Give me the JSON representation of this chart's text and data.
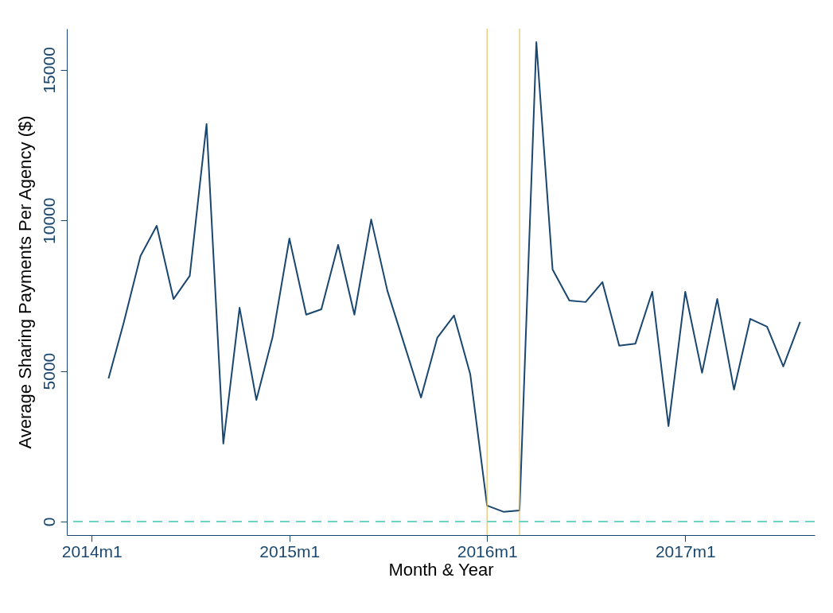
{
  "chart_data": {
    "type": "line",
    "xlabel": "Month & Year",
    "ylabel": "Average Sharing Payments Per Agency ($)",
    "x": [
      "2014-02",
      "2014-03",
      "2014-04",
      "2014-05",
      "2014-06",
      "2014-07",
      "2014-08",
      "2014-09",
      "2014-10",
      "2014-11",
      "2014-12",
      "2015-01",
      "2015-02",
      "2015-03",
      "2015-04",
      "2015-05",
      "2015-06",
      "2015-07",
      "2015-08",
      "2015-09",
      "2015-10",
      "2015-11",
      "2015-12",
      "2016-01",
      "2016-02",
      "2016-03",
      "2016-04",
      "2016-05",
      "2016-06",
      "2016-07",
      "2016-08",
      "2016-09",
      "2016-10",
      "2016-11",
      "2016-12",
      "2017-01",
      "2017-02",
      "2017-03",
      "2017-04",
      "2017-05",
      "2017-06",
      "2017-07",
      "2017-08"
    ],
    "series": [
      {
        "color": "#1a476f",
        "values": [
          4750,
          6600,
          8820,
          9820,
          7390,
          8160,
          13200,
          2590,
          7100,
          4040,
          6130,
          9400,
          6870,
          7050,
          9190,
          6870,
          10030,
          7660,
          5890,
          4120,
          6100,
          6840,
          4890,
          530,
          320,
          370,
          15920,
          8370,
          7340,
          7290,
          7950,
          5840,
          5910,
          7630,
          3170,
          7630,
          4940,
          7390,
          4380,
          6730,
          6470,
          5150,
          6630
        ]
      }
    ],
    "xlim": [
      "2013-11-16",
      "2017-08-28"
    ],
    "xticks": [
      {
        "value": "2014-01",
        "label": "2014m1"
      },
      {
        "value": "2015-01",
        "label": "2015m1"
      },
      {
        "value": "2016-01",
        "label": "2016m1"
      },
      {
        "value": "2017-01",
        "label": "2017m1"
      }
    ],
    "ylim": [
      -450,
      16370
    ],
    "yticks": [
      0,
      5000,
      10000,
      15000
    ],
    "ref_lines": [
      {
        "axis": "x",
        "value": "2016-01",
        "color": "#e8c06a",
        "line_style": "solid"
      },
      {
        "axis": "x",
        "value": "2016-03",
        "color": "#e8c06a",
        "line_style": "solid"
      },
      {
        "axis": "y",
        "value": 0,
        "color": "#6fd3c3",
        "line_style": "dashed"
      }
    ],
    "grid": false,
    "legend": false,
    "marker": "none",
    "line_style": "solid"
  }
}
